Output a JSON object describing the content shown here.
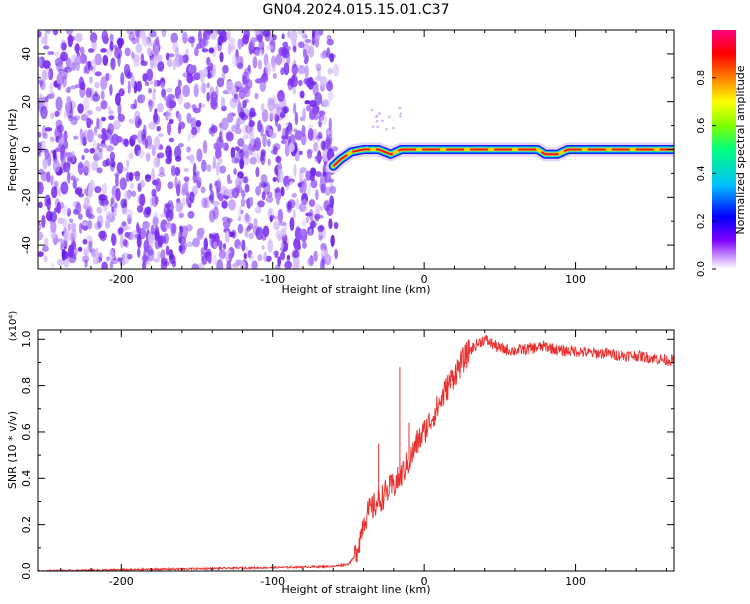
{
  "title": "GN04.2024.015.15.01.C37",
  "chart_data": [
    {
      "type": "heatmap",
      "title": "",
      "xlabel": "Height of straight line (km)",
      "ylabel": "Frequency (Hz)",
      "xlim": [
        -255,
        165
      ],
      "ylim": [
        -50,
        50
      ],
      "x_ticks": [
        -200,
        -100,
        0,
        100
      ],
      "y_ticks": [
        -40,
        -20,
        0,
        20,
        40
      ],
      "x_tick_labels": [
        "-200",
        "-100",
        "0",
        "100"
      ],
      "y_tick_labels": [
        "-40",
        "-20",
        "0",
        "20",
        "40"
      ],
      "noise_region_x": [
        -255,
        -58
      ],
      "signal_track": [
        {
          "x": -60,
          "freq": -7
        },
        {
          "x": -55,
          "freq": -4
        },
        {
          "x": -48,
          "freq": -1
        },
        {
          "x": -40,
          "freq": 0
        },
        {
          "x": -30,
          "freq": 0
        },
        {
          "x": -22,
          "freq": -2
        },
        {
          "x": -15,
          "freq": 0
        },
        {
          "x": 0,
          "freq": 0
        },
        {
          "x": 40,
          "freq": 0
        },
        {
          "x": 75,
          "freq": 0
        },
        {
          "x": 80,
          "freq": -2
        },
        {
          "x": 88,
          "freq": -2
        },
        {
          "x": 95,
          "freq": 0
        },
        {
          "x": 165,
          "freq": 0
        }
      ],
      "colorbar": {
        "label": "Normalized spectral amplitude",
        "range": [
          0,
          1
        ],
        "ticks": [
          0.0,
          0.2,
          0.4,
          0.6,
          0.8
        ],
        "tick_labels": [
          "0.0",
          "0.2",
          "0.4",
          "0.6",
          "0.8"
        ],
        "colors": [
          "#ffffff",
          "#cc99ff",
          "#7f00ff",
          "#0000ff",
          "#00bfff",
          "#00ff7f",
          "#7fff00",
          "#ffff00",
          "#ff7f00",
          "#ff0000",
          "#ff007f"
        ]
      },
      "colors": {
        "noise": "#7a2cf0",
        "track_outer": "#1a1aff",
        "track_mid": "#00e5d0",
        "track_inner": "#ffd400",
        "track_core": "#e8142e"
      }
    },
    {
      "type": "line",
      "title": "",
      "xlabel": "Height of straight line (km)",
      "ylabel": "SNR (10 * v/v)",
      "scale_label": "(x10⁴)",
      "xlim": [
        -255,
        165
      ],
      "ylim": [
        0,
        1.04
      ],
      "x_ticks": [
        -200,
        -100,
        0,
        100
      ],
      "y_ticks": [
        0.0,
        0.2,
        0.4,
        0.6,
        0.8,
        1.0
      ],
      "x_tick_labels": [
        "-200",
        "-100",
        "0",
        "100"
      ],
      "y_tick_labels": [
        "0.0",
        "0.2",
        "0.4",
        "0.6",
        "0.8",
        "1.0"
      ],
      "series": [
        {
          "color": "#e8302e",
          "x": [
            -255,
            -200,
            -150,
            -100,
            -60,
            -50,
            -46,
            -42,
            -40,
            -36,
            -30,
            -25,
            -20,
            -15,
            -12,
            -8,
            -5,
            0,
            5,
            10,
            15,
            20,
            25,
            30,
            35,
            40,
            50,
            60,
            70,
            80,
            90,
            100,
            110,
            120,
            130,
            140,
            150,
            160,
            165
          ],
          "values": [
            0.0,
            0.005,
            0.01,
            0.015,
            0.02,
            0.03,
            0.06,
            0.15,
            0.22,
            0.26,
            0.3,
            0.34,
            0.37,
            0.41,
            0.45,
            0.5,
            0.55,
            0.6,
            0.66,
            0.72,
            0.79,
            0.85,
            0.9,
            0.95,
            0.98,
            1.0,
            0.96,
            0.95,
            0.96,
            0.97,
            0.95,
            0.95,
            0.94,
            0.94,
            0.93,
            0.93,
            0.92,
            0.91,
            0.91
          ]
        }
      ]
    }
  ]
}
